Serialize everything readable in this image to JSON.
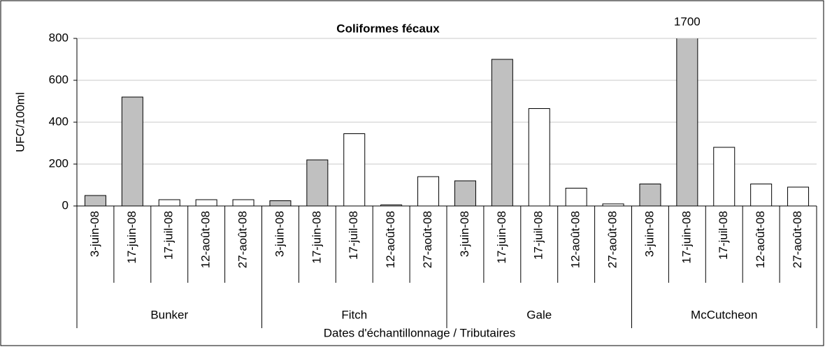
{
  "chart_data": {
    "type": "bar",
    "title": "Coliformes fécaux",
    "y_label": "UFC/100ml",
    "x_label": "Dates d'échantillonnage / Tributaires",
    "categories": [
      "3-juin-08",
      "17-juin-08",
      "17-juil-08",
      "12-août-08",
      "27-août-08",
      "3-juin-08",
      "17-juin-08",
      "17-juil-08",
      "12-août-08",
      "27-août-08",
      "3-juin-08",
      "17-juin-08",
      "17-juil-08",
      "12-août-08",
      "27-août-08",
      "3-juin-08",
      "17-juin-08",
      "17-juil-08",
      "12-août-08",
      "27-août-08"
    ],
    "groups": [
      "Bunker",
      "Fitch",
      "Gale",
      "McCutcheon"
    ],
    "values": [
      50,
      520,
      30,
      30,
      30,
      25,
      220,
      345,
      5,
      140,
      120,
      700,
      465,
      85,
      10,
      105,
      1700,
      280,
      105,
      90
    ],
    "colors": [
      "#c0c0c0",
      "#c0c0c0",
      "#ffffff",
      "#ffffff",
      "#ffffff",
      "#c0c0c0",
      "#c0c0c0",
      "#ffffff",
      "#ffffff",
      "#ffffff",
      "#c0c0c0",
      "#c0c0c0",
      "#ffffff",
      "#ffffff",
      "#ffffff",
      "#c0c0c0",
      "#c0c0c0",
      "#ffffff",
      "#ffffff",
      "#ffffff"
    ],
    "value_labels": [
      null,
      null,
      null,
      null,
      null,
      null,
      null,
      null,
      null,
      null,
      null,
      null,
      null,
      null,
      null,
      null,
      "1700",
      null,
      null,
      null
    ],
    "ylim": [
      0,
      800
    ],
    "yticks": [
      0,
      200,
      400,
      600,
      800
    ],
    "grid": true
  }
}
